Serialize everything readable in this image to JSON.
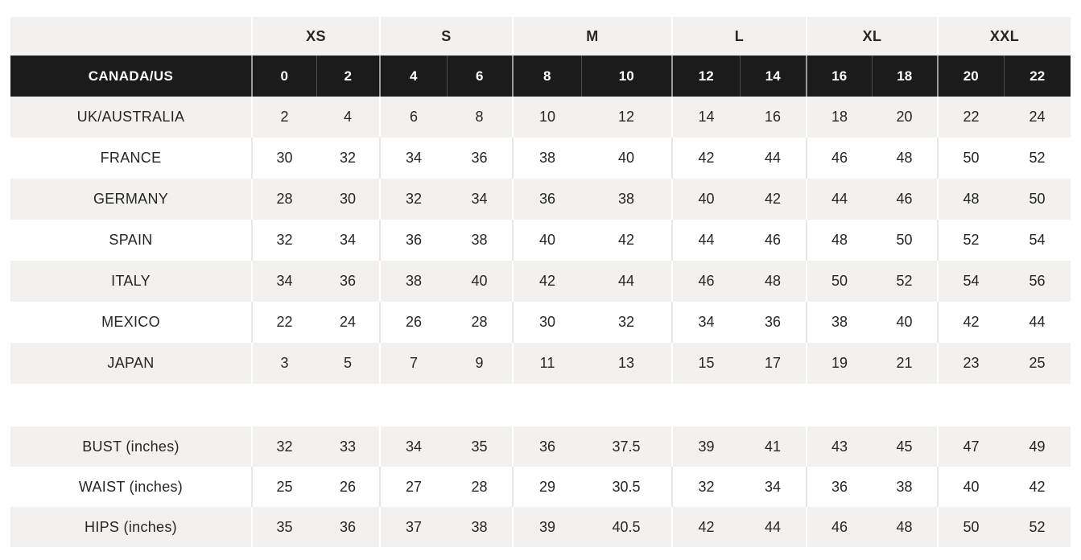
{
  "size_chart": {
    "header_groups": [
      "XS",
      "S",
      "M",
      "L",
      "XL",
      "XXL"
    ],
    "conversion_rows": [
      {
        "label": "CANADA/US",
        "highlight": true,
        "values": [
          "0",
          "2",
          "4",
          "6",
          "8",
          "10",
          "12",
          "14",
          "16",
          "18",
          "20",
          "22"
        ]
      },
      {
        "label": "UK/AUSTRALIA",
        "highlight": false,
        "values": [
          "2",
          "4",
          "6",
          "8",
          "10",
          "12",
          "14",
          "16",
          "18",
          "20",
          "22",
          "24"
        ]
      },
      {
        "label": "FRANCE",
        "highlight": false,
        "values": [
          "30",
          "32",
          "34",
          "36",
          "38",
          "40",
          "42",
          "44",
          "46",
          "48",
          "50",
          "52"
        ]
      },
      {
        "label": "GERMANY",
        "highlight": false,
        "values": [
          "28",
          "30",
          "32",
          "34",
          "36",
          "38",
          "40",
          "42",
          "44",
          "46",
          "48",
          "50"
        ]
      },
      {
        "label": "SPAIN",
        "highlight": false,
        "values": [
          "32",
          "34",
          "36",
          "38",
          "40",
          "42",
          "44",
          "46",
          "48",
          "50",
          "52",
          "54"
        ]
      },
      {
        "label": "ITALY",
        "highlight": false,
        "values": [
          "34",
          "36",
          "38",
          "40",
          "42",
          "44",
          "46",
          "48",
          "50",
          "52",
          "54",
          "56"
        ]
      },
      {
        "label": "MEXICO",
        "highlight": false,
        "values": [
          "22",
          "24",
          "26",
          "28",
          "30",
          "32",
          "34",
          "36",
          "38",
          "40",
          "42",
          "44"
        ]
      },
      {
        "label": "JAPAN",
        "highlight": false,
        "values": [
          "3",
          "5",
          "7",
          "9",
          "11",
          "13",
          "15",
          "17",
          "19",
          "21",
          "23",
          "25"
        ]
      }
    ],
    "measurement_rows": [
      {
        "label": "BUST (inches)",
        "values": [
          "32",
          "33",
          "34",
          "35",
          "36",
          "37.5",
          "39",
          "41",
          "43",
          "45",
          "47",
          "49"
        ]
      },
      {
        "label": "WAIST (inches)",
        "values": [
          "25",
          "26",
          "27",
          "28",
          "29",
          "30.5",
          "32",
          "34",
          "36",
          "38",
          "40",
          "42"
        ]
      },
      {
        "label": "HIPS (inches)",
        "values": [
          "35",
          "36",
          "37",
          "38",
          "39",
          "40.5",
          "42",
          "44",
          "46",
          "48",
          "50",
          "52"
        ]
      }
    ],
    "colors": {
      "page_background": "#ffffff",
      "row_stripe": "#f2f1ef",
      "highlight_row_background": "#1b1b1b",
      "highlight_row_text": "#ffffff",
      "label_text": "#1e1e1e",
      "number_text": "#262626",
      "separator_on_white": "#e8e7e5",
      "separator_on_stripe": "#ffffff",
      "separator_on_dark_group": "#9b9b9b",
      "separator_on_dark_pair": "#4d4d4d"
    }
  }
}
